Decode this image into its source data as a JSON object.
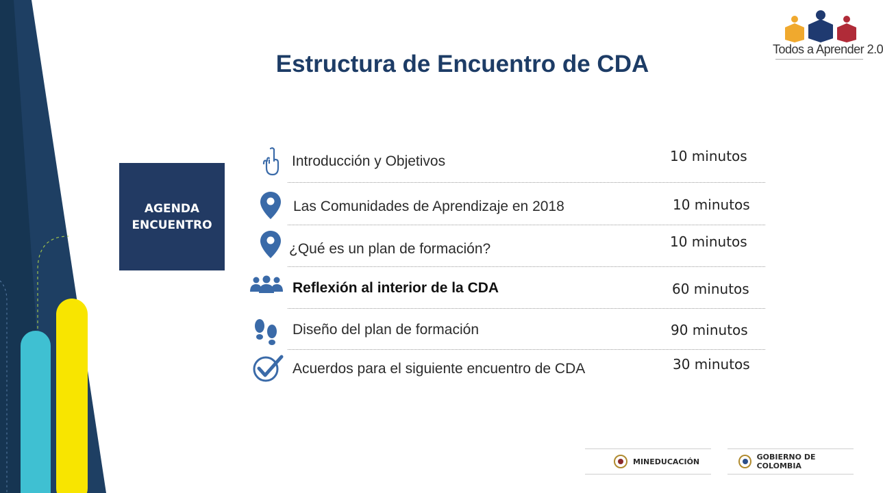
{
  "title": "Estructura de Encuentro de CDA",
  "agenda_box": {
    "line1": "AGENDA",
    "line2": "ENCUENTRO"
  },
  "logo": {
    "text_a": "Todos a ",
    "text_b": "Aprender 2.0"
  },
  "items": [
    {
      "label": "Introducción y Objetivos",
      "time": "10 minutos",
      "icon": "hand-pointing-icon",
      "bold": false
    },
    {
      "label": "Las Comunidades  de Aprendizaje en 2018",
      "time": "10 minutos",
      "icon": "location-pin-icon",
      "bold": false
    },
    {
      "label": "¿Qué es un plan de formación?",
      "time": "10 minutos",
      "icon": "location-pin-icon",
      "bold": false
    },
    {
      "label": "Reflexión al interior de la CDA",
      "time": "60 minutos",
      "icon": "group-people-icon",
      "bold": true
    },
    {
      "label": "Diseño del plan de formación",
      "time": "90 minutos",
      "icon": "footprints-icon",
      "bold": false
    },
    {
      "label": "Acuerdos para el siguiente encuentro de CDA",
      "time": "30 minutos",
      "icon": "checkmark-icon",
      "bold": false
    }
  ],
  "footer": {
    "mineducacion": "MINEDUCACIÓN",
    "gobierno": "GOBIERNO DE COLOMBIA"
  },
  "colors": {
    "navy": "#1d3c66",
    "teal": "#3fc0d2",
    "yellow": "#f8e500",
    "icon_blue": "#3a6aa8"
  }
}
